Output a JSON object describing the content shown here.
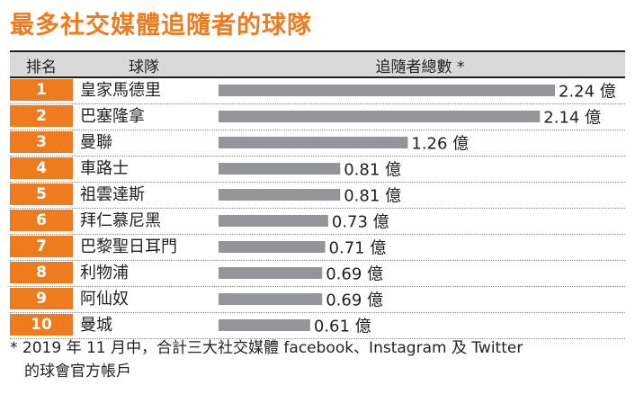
{
  "title": "最多社交媒體追隨者的球隊",
  "chart_data": {
    "type": "bar",
    "orientation": "horizontal",
    "columns": {
      "rank": "排名",
      "team": "球隊",
      "total": "追隨者總數 *"
    },
    "unit": "億",
    "ranks": [
      "1",
      "2",
      "3",
      "4",
      "5",
      "6",
      "7",
      "8",
      "9",
      "10"
    ],
    "categories": [
      "皇家馬德里",
      "巴塞隆拿",
      "曼聯",
      "車路士",
      "祖雲達斯",
      "拜仁慕尼黑",
      "巴黎聖日耳門",
      "利物浦",
      "阿仙奴",
      "曼城"
    ],
    "values": [
      2.24,
      2.14,
      1.26,
      0.81,
      0.81,
      0.73,
      0.71,
      0.69,
      0.69,
      0.61
    ],
    "value_labels": [
      "2.24 億",
      "2.14 億",
      "1.26 億",
      "0.81 億",
      "0.81 億",
      "0.73 億",
      "0.71 億",
      "0.69 億",
      "0.69 億",
      "0.61 億"
    ],
    "xlim": [
      0,
      2.24
    ],
    "colors": {
      "bar": "#939598",
      "rank_bg": "#ee7c1e",
      "header_bg": "#d9d9d9",
      "title": "#ee7c1e"
    }
  },
  "footnote": {
    "line1": "* 2019 年 11 月中，合計三大社交媒體 facebook、Instagram 及 Twitter",
    "line2": "的球會官方帳戶"
  }
}
